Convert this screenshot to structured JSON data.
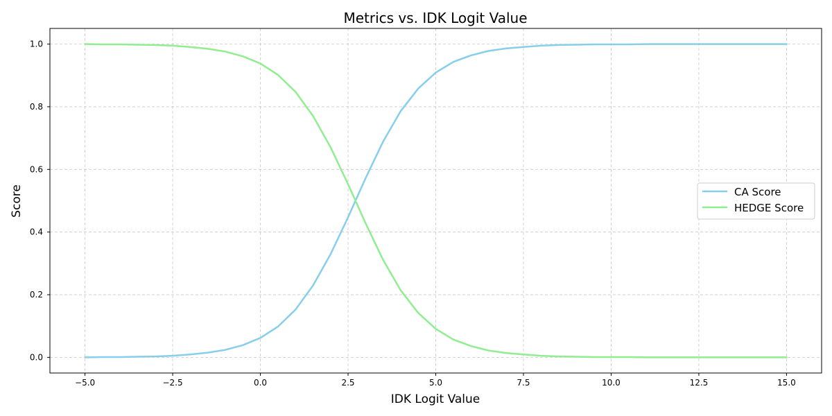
{
  "chart_data": {
    "type": "line",
    "title": "Metrics vs. IDK Logit Value",
    "xlabel": "IDK Logit Value",
    "ylabel": "Score",
    "xlim": [
      -6,
      16
    ],
    "ylim": [
      -0.05,
      1.05
    ],
    "xticks": [
      -5.0,
      -2.5,
      0.0,
      2.5,
      5.0,
      7.5,
      10.0,
      12.5,
      15.0
    ],
    "xtick_labels": [
      "−5.0",
      "−2.5",
      "0.0",
      "2.5",
      "5.0",
      "7.5",
      "10.0",
      "12.5",
      "15.0"
    ],
    "yticks": [
      0.0,
      0.2,
      0.4,
      0.6,
      0.8,
      1.0
    ],
    "ytick_labels": [
      "0.0",
      "0.2",
      "0.4",
      "0.6",
      "0.8",
      "1.0"
    ],
    "grid": true,
    "legend_position": "center-right",
    "x": [
      -5.0,
      -4.5,
      -4.0,
      -3.5,
      -3.0,
      -2.5,
      -2.0,
      -1.5,
      -1.0,
      -0.5,
      0.0,
      0.5,
      1.0,
      1.5,
      2.0,
      2.5,
      3.0,
      3.5,
      4.0,
      4.5,
      5.0,
      5.5,
      6.0,
      6.5,
      7.0,
      7.5,
      8.0,
      8.5,
      9.0,
      9.5,
      10.0,
      10.5,
      11.0,
      11.5,
      12.0,
      12.5,
      13.0,
      13.5,
      14.0,
      14.5,
      15.0
    ],
    "series": [
      {
        "name": "CA Score",
        "color": "#87CEEB",
        "values": [
          0.0,
          0.001,
          0.001,
          0.002,
          0.003,
          0.005,
          0.009,
          0.015,
          0.024,
          0.039,
          0.062,
          0.098,
          0.152,
          0.229,
          0.329,
          0.447,
          0.572,
          0.689,
          0.786,
          0.858,
          0.909,
          0.943,
          0.964,
          0.978,
          0.986,
          0.991,
          0.995,
          0.997,
          0.998,
          0.999,
          0.999,
          0.999,
          1.0,
          1.0,
          1.0,
          1.0,
          1.0,
          1.0,
          1.0,
          1.0,
          1.0
        ]
      },
      {
        "name": "HEDGE Score",
        "color": "#90EE90",
        "values": [
          1.0,
          0.999,
          0.999,
          0.998,
          0.997,
          0.995,
          0.991,
          0.985,
          0.976,
          0.961,
          0.938,
          0.902,
          0.848,
          0.771,
          0.671,
          0.553,
          0.428,
          0.311,
          0.214,
          0.142,
          0.091,
          0.057,
          0.036,
          0.022,
          0.014,
          0.009,
          0.005,
          0.003,
          0.002,
          0.001,
          0.001,
          0.001,
          0.0,
          0.0,
          0.0,
          0.0,
          0.0,
          0.0,
          0.0,
          0.0,
          0.0
        ]
      }
    ]
  }
}
